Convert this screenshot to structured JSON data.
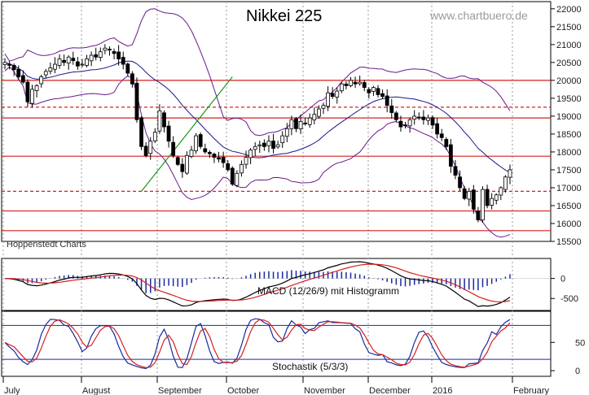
{
  "chart_data": {
    "type": "candlestick",
    "title": "Nikkei 225",
    "watermark": "www.chartbuero.de",
    "source_label": "Hoppenstedt Charts",
    "x_labels": [
      "July",
      "August",
      "September",
      "October",
      "November",
      "December",
      "2016",
      "February"
    ],
    "price_axis": {
      "ticks": [
        15500,
        16000,
        16500,
        17000,
        17500,
        18000,
        18500,
        19000,
        19500,
        20000,
        20500,
        21000,
        21500,
        22000
      ],
      "range": [
        15500,
        22200
      ]
    },
    "horizontal_levels": [
      {
        "value": 20000,
        "style": "solid",
        "color": "#d42020"
      },
      {
        "value": 19250,
        "style": "dashed",
        "color": "#d42020"
      },
      {
        "value": 18950,
        "style": "solid",
        "color": "#d42020"
      },
      {
        "value": 17880,
        "style": "solid",
        "color": "#d42020"
      },
      {
        "value": 16900,
        "style": "dashed",
        "color": "#d42020"
      },
      {
        "value": 16350,
        "style": "solid",
        "color": "#d42020"
      },
      {
        "value": 15800,
        "style": "solid",
        "color": "#d42020"
      }
    ],
    "trendline": {
      "color": "#1a9a1a",
      "from": [
        30,
        16900
      ],
      "to": [
        50,
        20100
      ]
    },
    "closes": [
      20500,
      20420,
      20300,
      20100,
      19950,
      19400,
      19750,
      19850,
      20100,
      20250,
      20350,
      20450,
      20600,
      20500,
      20650,
      20550,
      20400,
      20450,
      20600,
      20700,
      20650,
      20800,
      20900,
      20850,
      20750,
      20600,
      20450,
      20200,
      19900,
      18900,
      18150,
      17900,
      18300,
      18550,
      19150,
      18700,
      18300,
      17900,
      17650,
      17450,
      17900,
      18050,
      18450,
      18150,
      18000,
      17950,
      17850,
      17800,
      17700,
      17500,
      17100,
      17400,
      17650,
      17850,
      18050,
      18150,
      18200,
      18150,
      18300,
      18100,
      18200,
      18450,
      18650,
      18900,
      18650,
      18850,
      18800,
      18950,
      19050,
      19200,
      19300,
      19650,
      19550,
      19700,
      19900,
      19850,
      20000,
      19900,
      19950,
      19800,
      19650,
      19800,
      19600,
      19550,
      19300,
      19100,
      18900,
      18700,
      18750,
      18900,
      19000,
      18950,
      18900,
      18950,
      18750,
      18500,
      18400,
      18150,
      17600,
      17350,
      17000,
      16700,
      16900,
      16400,
      16100,
      16950,
      16500,
      16700,
      16800,
      17000,
      17300,
      17500
    ],
    "macd": {
      "label": "MACD (12/26/9) mit Histogramm",
      "ticks": [
        0,
        -500
      ],
      "range": [
        -800,
        500
      ]
    },
    "stochastic": {
      "label": "Stochastik (5/3/3)",
      "ticks": [
        0,
        50
      ],
      "range": [
        -10,
        105
      ],
      "levels": [
        20,
        80
      ]
    }
  }
}
